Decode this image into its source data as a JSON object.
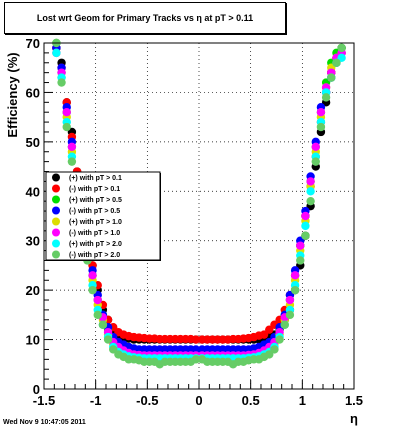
{
  "chart_data": {
    "type": "scatter",
    "title": "Lost wrt Geom for Primary Tracks vs    η at pT > 0.11",
    "xlabel": "η",
    "ylabel": "Efficiency (%)",
    "xlim": [
      -1.5,
      1.5
    ],
    "ylim": [
      0,
      70
    ],
    "xticks": [
      -1.5,
      -1,
      -0.5,
      0,
      0.5,
      1,
      1.5
    ],
    "xtick_labels": [
      "-1.5",
      "-1",
      "-0.5",
      "0",
      "0.5",
      "1",
      "1.5"
    ],
    "yticks": [
      0,
      10,
      20,
      30,
      40,
      50,
      60,
      70
    ],
    "ytick_labels": [
      "0",
      "10",
      "20",
      "30",
      "40",
      "50",
      "60",
      "70"
    ],
    "grid": true,
    "legend_position": "left-middle",
    "x": [
      -1.38,
      -1.33,
      -1.28,
      -1.23,
      -1.18,
      -1.13,
      -1.08,
      -1.03,
      -0.98,
      -0.93,
      -0.88,
      -0.83,
      -0.78,
      -0.73,
      -0.68,
      -0.63,
      -0.58,
      -0.53,
      -0.48,
      -0.43,
      -0.38,
      -0.33,
      -0.28,
      -0.23,
      -0.18,
      -0.13,
      -0.08,
      -0.03,
      0.03,
      0.08,
      0.13,
      0.18,
      0.23,
      0.28,
      0.33,
      0.38,
      0.43,
      0.48,
      0.53,
      0.58,
      0.63,
      0.68,
      0.73,
      0.78,
      0.83,
      0.88,
      0.93,
      0.98,
      1.03,
      1.08,
      1.13,
      1.18,
      1.23,
      1.28,
      1.33,
      1.38
    ],
    "series": [
      {
        "name": "(+) with pT > 0.1",
        "color": "#000000",
        "values": [
          69,
          66,
          58,
          52,
          44,
          37,
          31,
          25,
          20,
          16,
          14,
          12,
          11,
          10.5,
          10.2,
          10,
          10,
          10,
          10,
          10,
          10,
          10,
          10,
          10,
          10,
          10,
          10,
          10,
          10,
          10,
          10,
          10,
          10,
          10,
          10,
          10,
          10,
          10,
          10,
          10,
          10.2,
          10.5,
          11,
          12,
          14,
          16,
          20,
          25,
          31,
          37,
          45,
          52,
          58,
          64,
          67,
          69
        ]
      },
      {
        "name": "(-) with pT > 0.1",
        "color": "#ff0000",
        "values": [
          69,
          65,
          58,
          51,
          44,
          37,
          31,
          25,
          21,
          17,
          14,
          12.5,
          11.5,
          11,
          10.7,
          10.5,
          10.4,
          10.3,
          10.2,
          10.2,
          10.1,
          10.1,
          10.1,
          10.1,
          10.1,
          10.1,
          10.1,
          10,
          10,
          10,
          10,
          10,
          10,
          10,
          10.1,
          10.1,
          10.2,
          10.3,
          10.5,
          10.8,
          11,
          12,
          13,
          14,
          16,
          19,
          23,
          29,
          35,
          41,
          47,
          54,
          60,
          64,
          67,
          68
        ]
      },
      {
        "name": "(+) with pT > 0.5",
        "color": "#00dd00",
        "values": [
          70,
          64,
          56,
          49,
          42,
          35,
          29,
          23,
          18,
          15,
          12,
          10,
          9,
          8.5,
          8,
          7.8,
          7.6,
          7.6,
          7.5,
          7.5,
          7.5,
          7.5,
          7.5,
          7.5,
          7.5,
          7.5,
          7.5,
          7.5,
          7.5,
          7.5,
          7.5,
          7.5,
          7.5,
          7.5,
          7.5,
          7.5,
          7.6,
          7.6,
          7.8,
          8,
          8.5,
          9,
          10,
          12,
          15,
          18,
          23,
          29,
          35,
          42,
          49,
          56,
          62,
          66,
          68,
          69
        ]
      },
      {
        "name": "(-) with pT > 0.5",
        "color": "#0000ff",
        "values": [
          69,
          65,
          57,
          50,
          43,
          36,
          30,
          24,
          19,
          15,
          12.5,
          10.5,
          9.5,
          9,
          8.5,
          8.2,
          8,
          8,
          8,
          8,
          8,
          8,
          8,
          8,
          8,
          8,
          8,
          8,
          8,
          8,
          8,
          8,
          8,
          8,
          8,
          8,
          8,
          8,
          8.2,
          8.5,
          9,
          9.5,
          10.5,
          12.5,
          15,
          19,
          24,
          30,
          36,
          43,
          50,
          57,
          60,
          63,
          66,
          68
        ]
      },
      {
        "name": "(+) with pT > 1.0",
        "color": "#dddd00",
        "values": [
          68,
          63,
          55,
          48,
          41,
          34,
          28,
          22,
          17,
          14,
          11,
          9,
          8,
          7.5,
          7,
          6.8,
          6.6,
          6.5,
          6.5,
          6.5,
          6.5,
          6.5,
          6.5,
          6.5,
          6.5,
          6.5,
          6.5,
          6.5,
          6.5,
          6.5,
          6.5,
          6.5,
          6.5,
          6.5,
          6.5,
          6.5,
          6.5,
          6.6,
          6.8,
          7,
          7.5,
          8,
          9,
          11,
          14,
          17,
          22,
          28,
          34,
          41,
          48,
          55,
          61,
          65,
          67,
          68
        ]
      },
      {
        "name": "(-) with pT > 1.0",
        "color": "#ff00ff",
        "values": [
          68,
          64,
          56,
          49,
          42,
          35,
          29,
          23,
          18,
          14.5,
          11.5,
          9.5,
          8.5,
          7.8,
          7.3,
          7,
          6.9,
          6.8,
          6.8,
          6.8,
          6.8,
          6.8,
          6.8,
          6.8,
          6.8,
          6.8,
          6.8,
          6.8,
          6.8,
          6.8,
          6.8,
          6.8,
          6.8,
          6.8,
          6.8,
          6.8,
          6.8,
          6.9,
          7,
          7.3,
          7.8,
          8.5,
          9.5,
          11.5,
          14.5,
          18,
          23,
          29,
          35,
          42,
          49,
          56,
          61,
          64,
          67,
          68
        ]
      },
      {
        "name": "(+) with pT > 2.0",
        "color": "#00ffff",
        "values": [
          68,
          63,
          54,
          47,
          40,
          33,
          27,
          21,
          16,
          13,
          10.5,
          8.5,
          7.5,
          7,
          6.6,
          6.4,
          6.3,
          6.2,
          6.2,
          6.2,
          6.2,
          6.2,
          6.2,
          6.2,
          6.2,
          6.2,
          6.2,
          6.2,
          6.2,
          6.2,
          6.2,
          6.2,
          6.2,
          6.2,
          6.2,
          6.2,
          6.2,
          6.3,
          6.4,
          6.6,
          7,
          7.5,
          8.5,
          10.5,
          13,
          16,
          21,
          27,
          33,
          40,
          47,
          54,
          60,
          63,
          66,
          67
        ]
      },
      {
        "name": "(-) with pT > 2.0",
        "color": "#66cc66",
        "values": [
          70,
          62,
          53,
          46,
          38,
          31,
          26,
          20,
          15,
          13,
          10,
          8,
          7,
          6.5,
          6,
          6,
          5.8,
          5.5,
          5.5,
          5.5,
          5,
          5.5,
          5.5,
          5.5,
          5.5,
          5.5,
          5.5,
          6,
          6,
          5.5,
          5.5,
          5.5,
          5.5,
          5.5,
          5,
          5.5,
          5.5,
          5.8,
          6,
          6,
          6.5,
          7,
          8,
          10,
          13,
          15,
          20,
          26,
          31,
          38,
          46,
          53,
          59,
          63,
          66,
          69
        ]
      }
    ]
  },
  "footer": {
    "timestamp": "Wed Nov  9 10:47:05 2011"
  }
}
